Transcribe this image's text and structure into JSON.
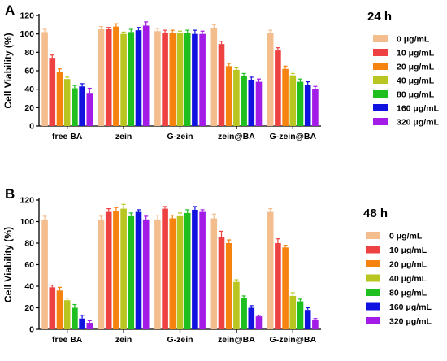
{
  "colors": {
    "0 μg/mL": "#F4BD8E",
    "10 μg/mL": "#EE4242",
    "20 μg/mL": "#F6830F",
    "40 μg/mL": "#B9C520",
    "80 μg/mL": "#1FBF1F",
    "160 μg/mL": "#1212E0",
    "320 μg/mL": "#A21BE6"
  },
  "chart_data": [
    {
      "type": "bar",
      "panel_label": "A",
      "time_label": "24 h",
      "ylabel": "Cell Viability (%)",
      "ylim": [
        0,
        120
      ],
      "yticks": [
        "0",
        "20",
        "40",
        "60",
        "80",
        "100",
        "120"
      ],
      "categories": [
        "free BA",
        "zein",
        "G-zein",
        "zein@BA",
        "G-zein@BA"
      ],
      "legend_position": "right",
      "series": [
        {
          "name": "0 μg/mL",
          "values": [
            102,
            105,
            103,
            106,
            101
          ],
          "errors": [
            3,
            3,
            3,
            4,
            3
          ]
        },
        {
          "name": "10 μg/mL",
          "values": [
            74,
            105,
            101,
            89,
            82
          ],
          "errors": [
            3,
            2,
            3,
            3,
            3
          ]
        },
        {
          "name": "20 μg/mL",
          "values": [
            59,
            108,
            101,
            65,
            62
          ],
          "errors": [
            3,
            3,
            3,
            3,
            3
          ]
        },
        {
          "name": "40 μg/mL",
          "values": [
            51,
            100,
            101,
            61,
            55
          ],
          "errors": [
            2,
            2,
            2,
            2,
            2
          ]
        },
        {
          "name": "80 μg/mL",
          "values": [
            41,
            102,
            101,
            54,
            48
          ],
          "errors": [
            3,
            3,
            3,
            3,
            3
          ]
        },
        {
          "name": "160 μg/mL",
          "values": [
            43,
            104,
            100,
            50,
            45
          ],
          "errors": [
            3,
            3,
            4,
            3,
            3
          ]
        },
        {
          "name": "320 μg/mL",
          "values": [
            36,
            109,
            100,
            48,
            40
          ],
          "errors": [
            5,
            4,
            3,
            3,
            3
          ]
        }
      ]
    },
    {
      "type": "bar",
      "panel_label": "B",
      "time_label": "48 h",
      "ylabel": "Cell Viability (%)",
      "ylim": [
        0,
        120
      ],
      "yticks": [
        "0",
        "20",
        "40",
        "60",
        "80",
        "100",
        "120"
      ],
      "categories": [
        "free BA",
        "zein",
        "G-zein",
        "zein@BA",
        "G-zein@BA"
      ],
      "legend_position": "right",
      "series": [
        {
          "name": "0 μg/mL",
          "values": [
            102,
            102,
            102,
            103,
            109
          ],
          "errors": [
            3,
            3,
            4,
            4,
            3
          ]
        },
        {
          "name": "10 μg/mL",
          "values": [
            39,
            109,
            112,
            86,
            80
          ],
          "errors": [
            2,
            3,
            2,
            5,
            4
          ]
        },
        {
          "name": "20 μg/mL",
          "values": [
            36,
            110,
            103,
            80,
            76
          ],
          "errors": [
            3,
            3,
            3,
            3,
            2
          ]
        },
        {
          "name": "40 μg/mL",
          "values": [
            27,
            112,
            105,
            44,
            31
          ],
          "errors": [
            2,
            4,
            3,
            2,
            3
          ]
        },
        {
          "name": "80 μg/mL",
          "values": [
            20,
            105,
            108,
            29,
            26
          ],
          "errors": [
            3,
            3,
            3,
            2,
            2
          ]
        },
        {
          "name": "160 μg/mL",
          "values": [
            10,
            109,
            111,
            20,
            18
          ],
          "errors": [
            3,
            2,
            3,
            2,
            2
          ]
        },
        {
          "name": "320 μg/mL",
          "values": [
            6,
            102,
            109,
            12,
            9
          ],
          "errors": [
            2,
            3,
            2,
            1,
            1
          ]
        }
      ]
    }
  ]
}
